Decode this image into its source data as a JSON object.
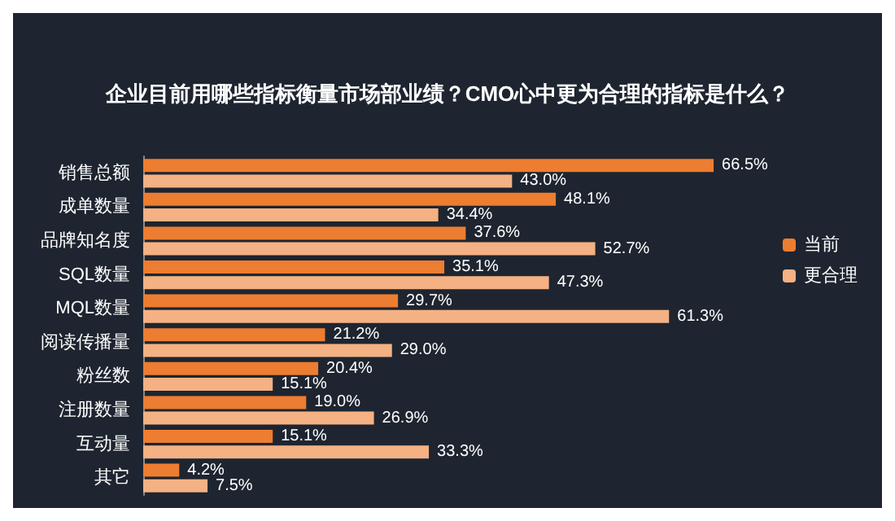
{
  "chart_data": {
    "type": "bar",
    "orientation": "horizontal",
    "title": "企业目前用哪些指标衡量市场部业绩？CMO心中更为合理的指标是什么？",
    "categories": [
      "销售总额",
      "成单数量",
      "品牌知名度",
      "SQL数量",
      "MQL数量",
      "阅读传播量",
      "粉丝数",
      "注册数量",
      "互动量",
      "其它"
    ],
    "series": [
      {
        "name": "当前",
        "color": "#ed7d31",
        "values": [
          66.5,
          48.1,
          37.6,
          35.1,
          29.7,
          21.2,
          20.4,
          19.0,
          15.1,
          4.2
        ],
        "value_labels": [
          "66.5%",
          "48.1%",
          "37.6%",
          "35.1%",
          "29.7%",
          "21.2%",
          "20.4%",
          "19.0%",
          "15.1%",
          "4.2%"
        ]
      },
      {
        "name": "更合理",
        "color": "#f4b183",
        "values": [
          43.0,
          34.4,
          52.7,
          47.3,
          61.3,
          29.0,
          15.1,
          26.9,
          33.3,
          7.5
        ],
        "value_labels": [
          "43.0%",
          "34.4%",
          "52.7%",
          "47.3%",
          "61.3%",
          "29.0%",
          "15.1%",
          "26.9%",
          "33.3%",
          "7.5%"
        ]
      }
    ],
    "legend": "right"
  }
}
